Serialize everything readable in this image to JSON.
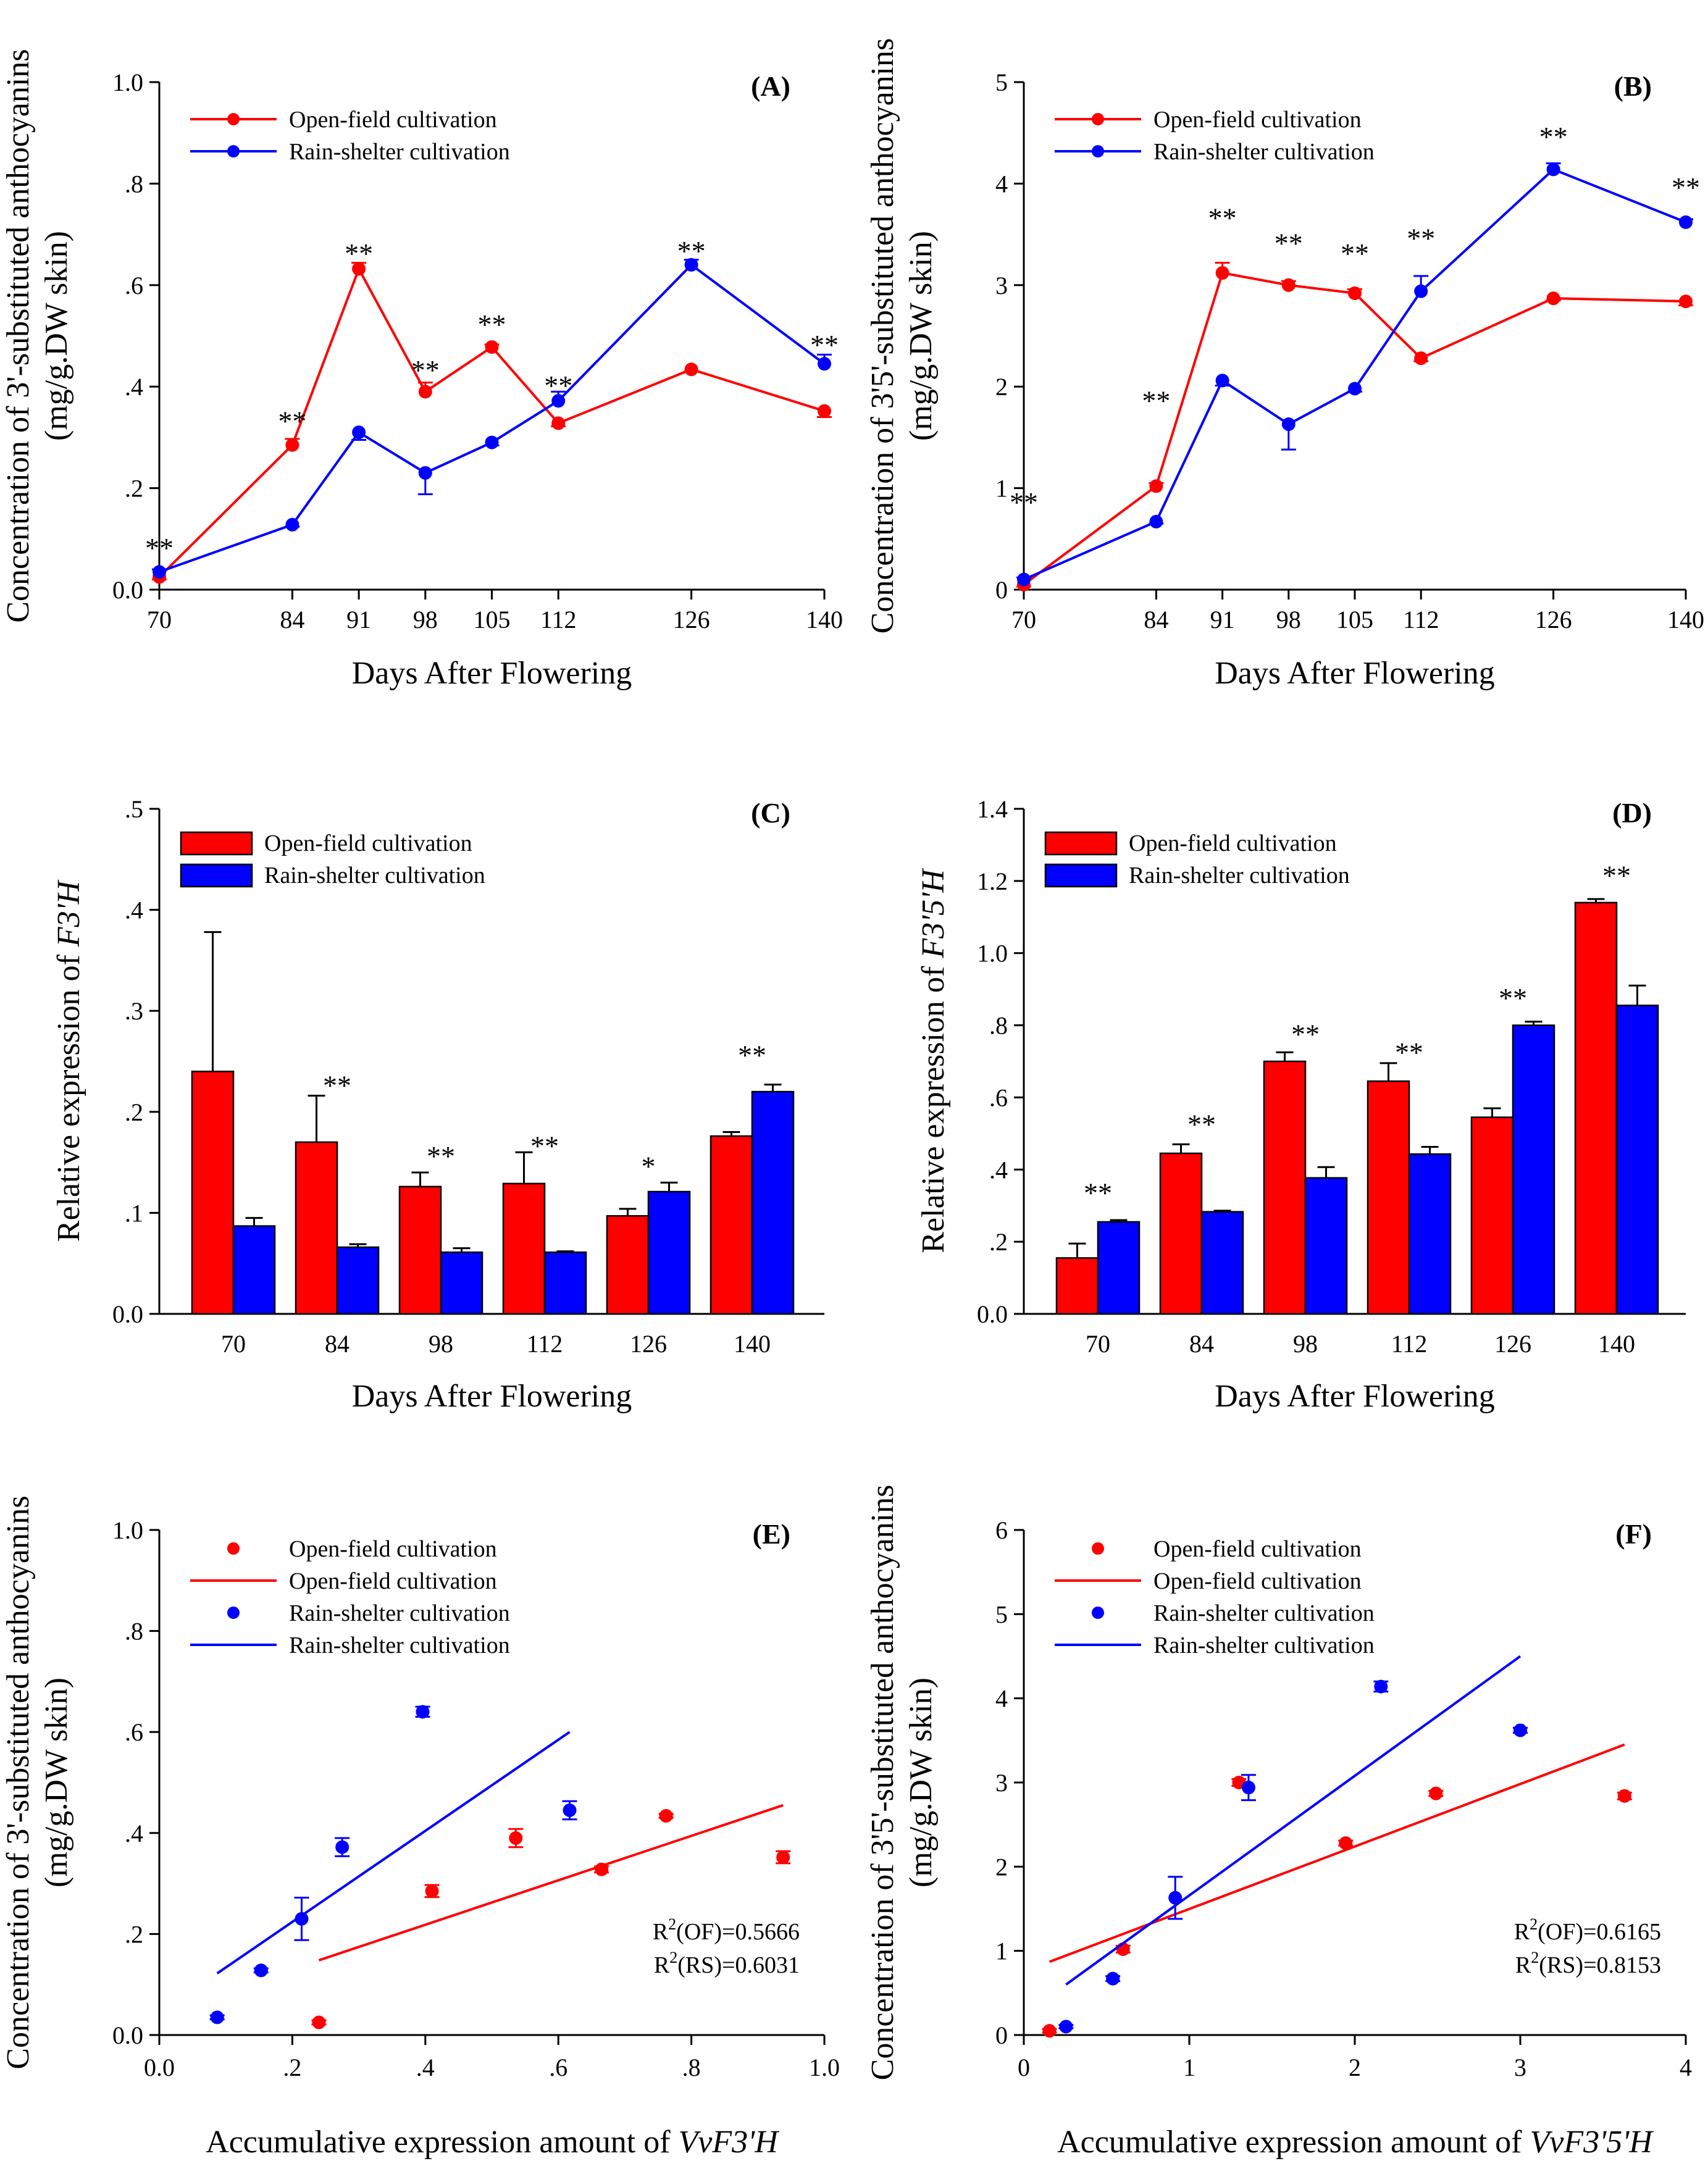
{
  "legend": {
    "open_field": "Open-field cultivation",
    "rain_shelter": "Rain-shelter cultivation"
  },
  "colors": {
    "open_field": "#ff0000",
    "rain_shelter": "#0000ff"
  },
  "chart_data": [
    {
      "id": "A",
      "type": "line",
      "panel_label": "(A)",
      "ylabel_lines": [
        "Concentration of 3'-substituted anthocyanins",
        "(mg/g.DW skin)"
      ],
      "xlabel": "Days After Flowering",
      "x": [
        70,
        84,
        91,
        98,
        105,
        112,
        126,
        140
      ],
      "xlim": [
        70,
        140
      ],
      "ylim": [
        0,
        1
      ],
      "yticks": [
        0,
        0.2,
        0.4,
        0.6,
        0.8,
        1.0
      ],
      "yticklabels": [
        "0.0",
        ".2",
        ".4",
        ".6",
        ".8",
        "1.0"
      ],
      "xticklabels": [
        "70",
        "84",
        "91",
        "98",
        "105",
        "112",
        "126",
        "140"
      ],
      "series": [
        {
          "name": "Open-field cultivation",
          "key": "open_field",
          "values": [
            0.025,
            0.285,
            0.632,
            0.39,
            0.478,
            0.328,
            0.434,
            0.352
          ],
          "errors": [
            0.005,
            0.012,
            0.012,
            0.018,
            0.005,
            0.006,
            0.004,
            0.012
          ]
        },
        {
          "name": "Rain-shelter cultivation",
          "key": "rain_shelter",
          "values": [
            0.035,
            0.128,
            0.31,
            0.23,
            0.29,
            0.372,
            0.64,
            0.445
          ],
          "errors": [
            0.005,
            0.004,
            0.015,
            0.042,
            0.006,
            0.018,
            0.01,
            0.018
          ]
        }
      ],
      "annotations": [
        {
          "x": 70,
          "y": 0.1,
          "text": "**"
        },
        {
          "x": 84,
          "y": 0.35,
          "text": "**"
        },
        {
          "x": 91,
          "y": 0.68,
          "text": "**"
        },
        {
          "x": 98,
          "y": 0.45,
          "text": "**"
        },
        {
          "x": 105,
          "y": 0.54,
          "text": "**"
        },
        {
          "x": 112,
          "y": 0.42,
          "text": "**"
        },
        {
          "x": 126,
          "y": 0.685,
          "text": "**"
        },
        {
          "x": 140,
          "y": 0.5,
          "text": "**"
        }
      ]
    },
    {
      "id": "B",
      "type": "line",
      "panel_label": "(B)",
      "ylabel_lines": [
        "Concentration of 3'5'-substituted anthocyanins",
        "(mg/g.DW skin)"
      ],
      "xlabel": "Days After Flowering",
      "x": [
        70,
        84,
        91,
        98,
        105,
        112,
        126,
        140
      ],
      "xlim": [
        70,
        140
      ],
      "ylim": [
        0,
        5
      ],
      "yticks": [
        0,
        1,
        2,
        3,
        4,
        5
      ],
      "yticklabels": [
        "0",
        "1",
        "2",
        "3",
        "4",
        "5"
      ],
      "xticklabels": [
        "70",
        "84",
        "91",
        "98",
        "105",
        "112",
        "126",
        "140"
      ],
      "series": [
        {
          "name": "Open-field cultivation",
          "key": "open_field",
          "values": [
            0.05,
            1.02,
            3.12,
            3.0,
            2.92,
            2.28,
            2.87,
            2.84
          ],
          "errors": [
            0.02,
            0.03,
            0.1,
            0.04,
            0.04,
            0.03,
            0.02,
            0.04
          ]
        },
        {
          "name": "Rain-shelter cultivation",
          "key": "rain_shelter",
          "values": [
            0.1,
            0.67,
            2.06,
            1.63,
            1.98,
            2.94,
            4.14,
            3.62
          ],
          "errors": [
            0.02,
            0.02,
            0.05,
            0.25,
            0.03,
            0.15,
            0.06,
            0.03
          ]
        }
      ],
      "annotations": [
        {
          "x": 70,
          "y": 0.95,
          "text": "**"
        },
        {
          "x": 84,
          "y": 1.95,
          "text": "**"
        },
        {
          "x": 91,
          "y": 3.75,
          "text": "**"
        },
        {
          "x": 98,
          "y": 3.5,
          "text": "**"
        },
        {
          "x": 105,
          "y": 3.4,
          "text": "**"
        },
        {
          "x": 112,
          "y": 3.55,
          "text": "**"
        },
        {
          "x": 126,
          "y": 4.55,
          "text": "**"
        },
        {
          "x": 140,
          "y": 4.05,
          "text": "**"
        }
      ]
    },
    {
      "id": "C",
      "type": "bar",
      "panel_label": "(C)",
      "ylabel_prefix": "Relative expression of ",
      "ylabel_italic": "F3'H",
      "xlabel": "Days After Flowering",
      "categories": [
        "70",
        "84",
        "98",
        "112",
        "126",
        "140"
      ],
      "ylim": [
        0,
        0.5
      ],
      "yticks": [
        0,
        0.1,
        0.2,
        0.3,
        0.4,
        0.5
      ],
      "yticklabels": [
        "0.0",
        ".1",
        ".2",
        ".3",
        ".4",
        ".5"
      ],
      "series": [
        {
          "name": "Open-field cultivation",
          "key": "open_field",
          "values": [
            0.24,
            0.17,
            0.126,
            0.129,
            0.097,
            0.176
          ],
          "errors": [
            0.138,
            0.046,
            0.014,
            0.031,
            0.007,
            0.004
          ]
        },
        {
          "name": "Rain-shelter cultivation",
          "key": "rain_shelter",
          "values": [
            0.087,
            0.066,
            0.061,
            0.061,
            0.121,
            0.22
          ],
          "errors": [
            0.008,
            0.003,
            0.004,
            0.001,
            0.009,
            0.007
          ]
        }
      ],
      "annotations": [
        {
          "cat": 1,
          "y": 0.235,
          "text": "**"
        },
        {
          "cat": 2,
          "y": 0.165,
          "text": "**"
        },
        {
          "cat": 3,
          "y": 0.175,
          "text": "**"
        },
        {
          "cat": 4,
          "y": 0.155,
          "text": "*"
        },
        {
          "cat": 5,
          "y": 0.265,
          "text": "**"
        }
      ]
    },
    {
      "id": "D",
      "type": "bar",
      "panel_label": "(D)",
      "ylabel_prefix": "Relative expression of ",
      "ylabel_italic": "F3'5'H",
      "xlabel": "Days After Flowering",
      "categories": [
        "70",
        "84",
        "98",
        "112",
        "126",
        "140"
      ],
      "ylim": [
        0,
        1.4
      ],
      "yticks": [
        0,
        0.2,
        0.4,
        0.6,
        0.8,
        1.0,
        1.2,
        1.4
      ],
      "yticklabels": [
        "0.0",
        ".2",
        ".4",
        ".6",
        ".8",
        "1.0",
        "1.2",
        "1.4"
      ],
      "series": [
        {
          "name": "Open-field cultivation",
          "key": "open_field",
          "values": [
            0.155,
            0.445,
            0.7,
            0.645,
            0.545,
            1.14
          ],
          "errors": [
            0.04,
            0.025,
            0.025,
            0.05,
            0.025,
            0.01
          ]
        },
        {
          "name": "Rain-shelter cultivation",
          "key": "rain_shelter",
          "values": [
            0.255,
            0.283,
            0.377,
            0.443,
            0.8,
            0.855
          ],
          "errors": [
            0.005,
            0.003,
            0.03,
            0.02,
            0.01,
            0.055
          ]
        }
      ],
      "annotations": [
        {
          "cat": 0,
          "y": 0.36,
          "text": "**"
        },
        {
          "cat": 1,
          "y": 0.55,
          "text": "**"
        },
        {
          "cat": 2,
          "y": 0.8,
          "text": "**"
        },
        {
          "cat": 3,
          "y": 0.75,
          "text": "**"
        },
        {
          "cat": 4,
          "y": 0.9,
          "text": "**"
        },
        {
          "cat": 5,
          "y": 1.24,
          "text": "**"
        }
      ]
    },
    {
      "id": "E",
      "type": "scatter",
      "panel_label": "(E)",
      "ylabel_lines": [
        "Concentration of 3'-substituted anthocyanins",
        "(mg/g.DW skin)"
      ],
      "xlabel_prefix": "Accumulative expression amount of ",
      "xlabel_italic": "VvF3'H",
      "xlim": [
        0,
        1
      ],
      "ylim": [
        0,
        1
      ],
      "xticks": [
        0,
        0.2,
        0.4,
        0.6,
        0.8,
        1.0
      ],
      "xticklabels": [
        "0.0",
        ".2",
        ".4",
        ".6",
        ".8",
        "1.0"
      ],
      "yticks": [
        0,
        0.2,
        0.4,
        0.6,
        0.8,
        1.0
      ],
      "yticklabels": [
        "0.0",
        ".2",
        ".4",
        ".6",
        ".8",
        "1.0"
      ],
      "series": [
        {
          "name": "Open-field cultivation",
          "key": "open_field",
          "x": [
            0.24,
            0.41,
            0.536,
            0.665,
            0.762,
            0.938
          ],
          "y": [
            0.025,
            0.285,
            0.39,
            0.328,
            0.434,
            0.352
          ],
          "errors": [
            0.004,
            0.012,
            0.018,
            0.006,
            0.004,
            0.012
          ],
          "fit": {
            "x": [
              0.24,
              0.938
            ],
            "y": [
              0.148,
              0.455
            ]
          }
        },
        {
          "name": "Rain-shelter cultivation",
          "key": "rain_shelter",
          "x": [
            0.087,
            0.153,
            0.214,
            0.275,
            0.396,
            0.617
          ],
          "y": [
            0.035,
            0.128,
            0.23,
            0.372,
            0.64,
            0.445
          ],
          "errors": [
            0.004,
            0.004,
            0.042,
            0.018,
            0.01,
            0.018
          ],
          "fit": {
            "x": [
              0.087,
              0.617
            ],
            "y": [
              0.122,
              0.6
            ]
          }
        }
      ],
      "legend_entries": [
        {
          "kind": "marker",
          "key": "open_field"
        },
        {
          "kind": "line",
          "key": "open_field"
        },
        {
          "kind": "marker",
          "key": "rain_shelter"
        },
        {
          "kind": "line",
          "key": "rain_shelter"
        }
      ],
      "r2": [
        {
          "label": "(OF)=0.5666"
        },
        {
          "label": "(RS)=0.6031"
        }
      ]
    },
    {
      "id": "F",
      "type": "scatter",
      "panel_label": "(F)",
      "ylabel_lines": [
        "Concentration of 3'5'-substituted anthocyanins",
        "(mg/g.DW skin)"
      ],
      "xlabel_prefix": "Accumulative expression amount of ",
      "xlabel_italic": "VvF3'5'H",
      "xlim": [
        0,
        4
      ],
      "ylim": [
        0,
        6
      ],
      "xticks": [
        0,
        1,
        2,
        3,
        4
      ],
      "xticklabels": [
        "0",
        "1",
        "2",
        "3",
        "4"
      ],
      "yticks": [
        0,
        1,
        2,
        3,
        4,
        5,
        6
      ],
      "yticklabels": [
        "0",
        "1",
        "2",
        "3",
        "4",
        "5",
        "6"
      ],
      "series": [
        {
          "name": "Open-field cultivation",
          "key": "open_field",
          "x": [
            0.155,
            0.6,
            1.3,
            1.945,
            2.49,
            3.63
          ],
          "y": [
            0.05,
            1.02,
            3.0,
            2.28,
            2.87,
            2.84
          ],
          "errors": [
            0.02,
            0.04,
            0.04,
            0.03,
            0.03,
            0.04
          ],
          "fit": {
            "x": [
              0.155,
              3.63
            ],
            "y": [
              0.87,
              3.45
            ]
          }
        },
        {
          "name": "Rain-shelter cultivation",
          "key": "rain_shelter",
          "x": [
            0.255,
            0.538,
            0.915,
            1.358,
            2.158,
            3.0
          ],
          "y": [
            0.1,
            0.67,
            1.63,
            2.94,
            4.14,
            3.62
          ],
          "errors": [
            0.02,
            0.03,
            0.25,
            0.15,
            0.06,
            0.03
          ],
          "fit": {
            "x": [
              0.255,
              3.0
            ],
            "y": [
              0.6,
              4.5
            ]
          }
        }
      ],
      "legend_entries": [
        {
          "kind": "marker",
          "key": "open_field"
        },
        {
          "kind": "line",
          "key": "open_field"
        },
        {
          "kind": "marker",
          "key": "rain_shelter"
        },
        {
          "kind": "line",
          "key": "rain_shelter"
        }
      ],
      "r2": [
        {
          "label": "(OF)=0.6165"
        },
        {
          "label": "(RS)=0.8153"
        }
      ]
    }
  ]
}
